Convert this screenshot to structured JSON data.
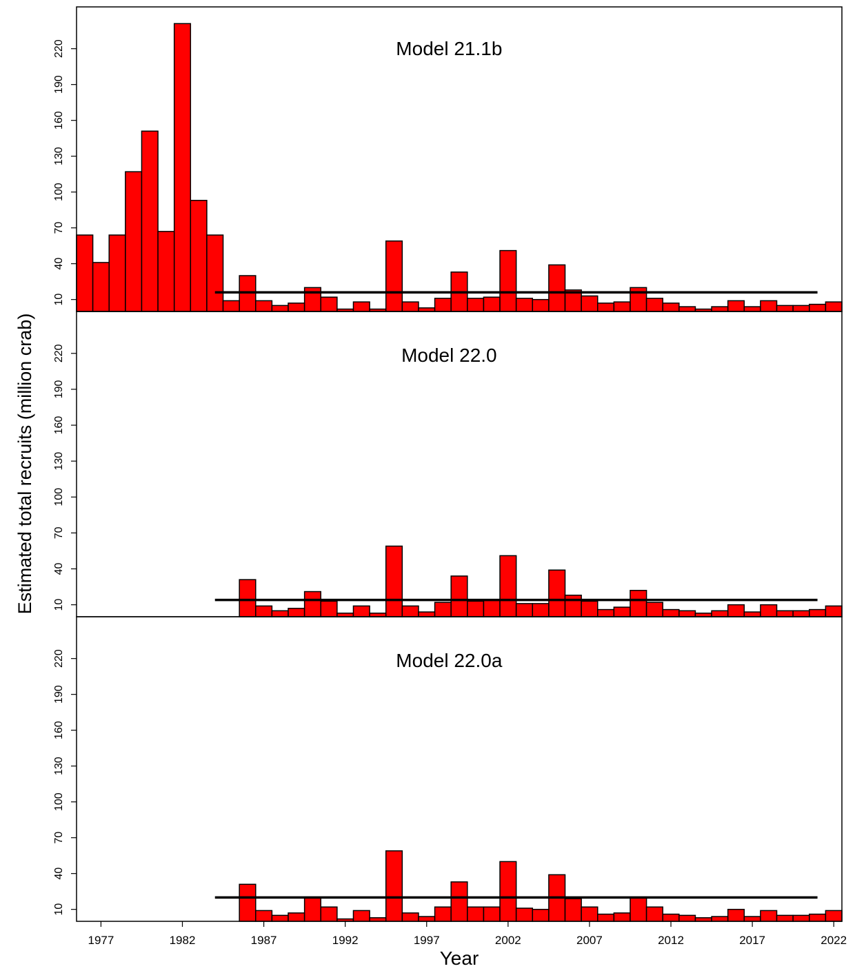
{
  "colors": {
    "bar_fill": "#ff0000",
    "bar_stroke": "#000000",
    "reference_line": "#000000",
    "background": "#ffffff"
  },
  "labels": {
    "ylabel": "Estimated total recruits (million crab)",
    "xlabel": "Year"
  },
  "chart_data": [
    {
      "type": "bar",
      "title": "Model 21.1b",
      "x": [
        1976,
        1977,
        1978,
        1979,
        1980,
        1981,
        1982,
        1983,
        1984,
        1985,
        1986,
        1987,
        1988,
        1989,
        1990,
        1991,
        1992,
        1993,
        1994,
        1995,
        1996,
        1997,
        1998,
        1999,
        2000,
        2001,
        2002,
        2003,
        2004,
        2005,
        2006,
        2007,
        2008,
        2009,
        2010,
        2011,
        2012,
        2013,
        2014,
        2015,
        2016,
        2017,
        2018,
        2019,
        2020,
        2021,
        2022
      ],
      "values": [
        64,
        41,
        64,
        117,
        151,
        67,
        241,
        93,
        64,
        9,
        30,
        9,
        5,
        7,
        20,
        12,
        2,
        8,
        2,
        59,
        8,
        3,
        11,
        33,
        11,
        12,
        51,
        11,
        10,
        39,
        18,
        13,
        7,
        8,
        20,
        11,
        7,
        4,
        2,
        4,
        9,
        4,
        9,
        5,
        5,
        6,
        8
      ],
      "reference_line": {
        "value": 16,
        "from": 1984,
        "to": 2021
      },
      "ylim": [
        0,
        255
      ],
      "yticks": [
        10,
        40,
        70,
        100,
        130,
        160,
        190,
        220
      ]
    },
    {
      "type": "bar",
      "title": "Model 22.0",
      "x": [
        1986,
        1987,
        1988,
        1989,
        1990,
        1991,
        1992,
        1993,
        1994,
        1995,
        1996,
        1997,
        1998,
        1999,
        2000,
        2001,
        2002,
        2003,
        2004,
        2005,
        2006,
        2007,
        2008,
        2009,
        2010,
        2011,
        2012,
        2013,
        2014,
        2015,
        2016,
        2017,
        2018,
        2019,
        2020,
        2021,
        2022
      ],
      "values": [
        31,
        9,
        5,
        7,
        21,
        13,
        3,
        9,
        3,
        59,
        9,
        4,
        12,
        34,
        13,
        14,
        51,
        11,
        11,
        39,
        18,
        13,
        6,
        8,
        22,
        12,
        6,
        5,
        3,
        5,
        10,
        4,
        10,
        5,
        5,
        6,
        9
      ],
      "reference_line": {
        "value": 14,
        "from": 1984,
        "to": 2021
      },
      "ylim": [
        0,
        255
      ],
      "yticks": [
        10,
        40,
        70,
        100,
        130,
        160,
        190,
        220
      ]
    },
    {
      "type": "bar",
      "title": "Model 22.0a",
      "x": [
        1986,
        1987,
        1988,
        1989,
        1990,
        1991,
        1992,
        1993,
        1994,
        1995,
        1996,
        1997,
        1998,
        1999,
        2000,
        2001,
        2002,
        2003,
        2004,
        2005,
        2006,
        2007,
        2008,
        2009,
        2010,
        2011,
        2012,
        2013,
        2014,
        2015,
        2016,
        2017,
        2018,
        2019,
        2020,
        2021,
        2022
      ],
      "values": [
        31,
        9,
        5,
        7,
        20,
        12,
        2,
        9,
        3,
        59,
        7,
        4,
        12,
        33,
        12,
        12,
        50,
        11,
        10,
        39,
        19,
        12,
        6,
        7,
        20,
        12,
        6,
        5,
        3,
        4,
        10,
        4,
        9,
        5,
        5,
        6,
        9
      ],
      "reference_line": {
        "value": 20,
        "from": 1984,
        "to": 2021
      },
      "ylim": [
        0,
        255
      ],
      "yticks": [
        10,
        40,
        70,
        100,
        130,
        160,
        190,
        220
      ]
    }
  ],
  "xticks": [
    1977,
    1982,
    1987,
    1992,
    1997,
    2002,
    2007,
    2012,
    2017,
    2022
  ]
}
